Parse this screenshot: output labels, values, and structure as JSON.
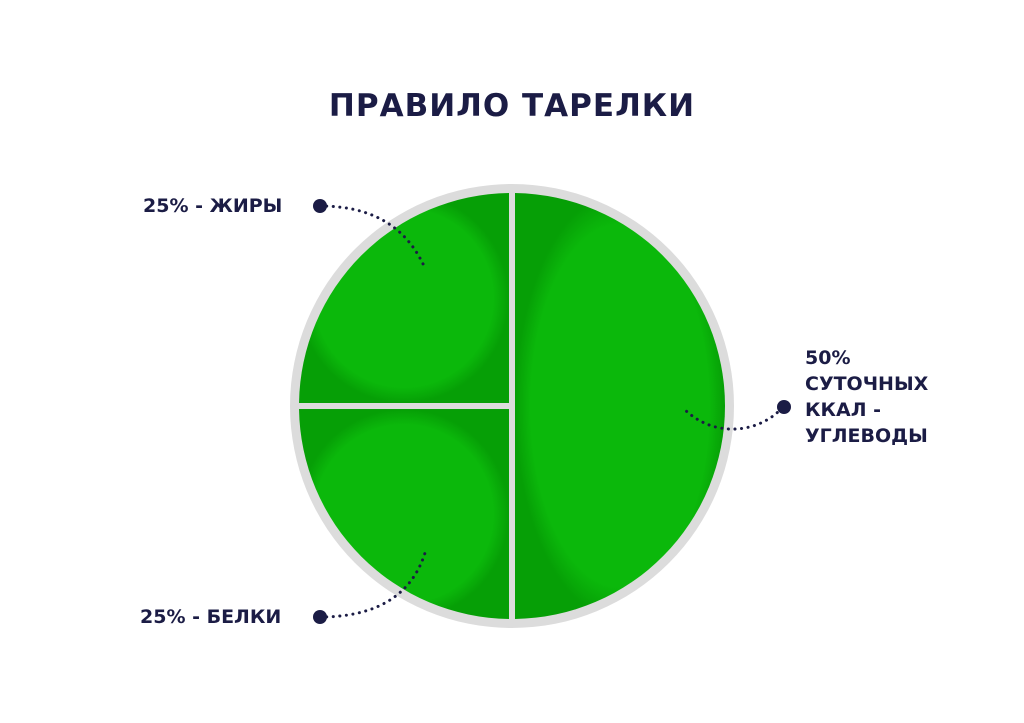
{
  "chart_data": {
    "type": "pie",
    "title": "ПРАВИЛО ТАРЕЛКИ",
    "slices": [
      {
        "label": "25% - ЖИРЫ",
        "value": 25
      },
      {
        "label": "25% - БЕЛКИ",
        "value": 25
      },
      {
        "label_lines": [
          "50%",
          "СУТОЧНЫХ",
          "ККАЛ -",
          "УГЛЕВОДЫ"
        ],
        "value": 50
      }
    ],
    "colors": {
      "slice": "#0db80d",
      "plate_rim": "#dcdcdc",
      "text": "#1b1c45"
    }
  }
}
